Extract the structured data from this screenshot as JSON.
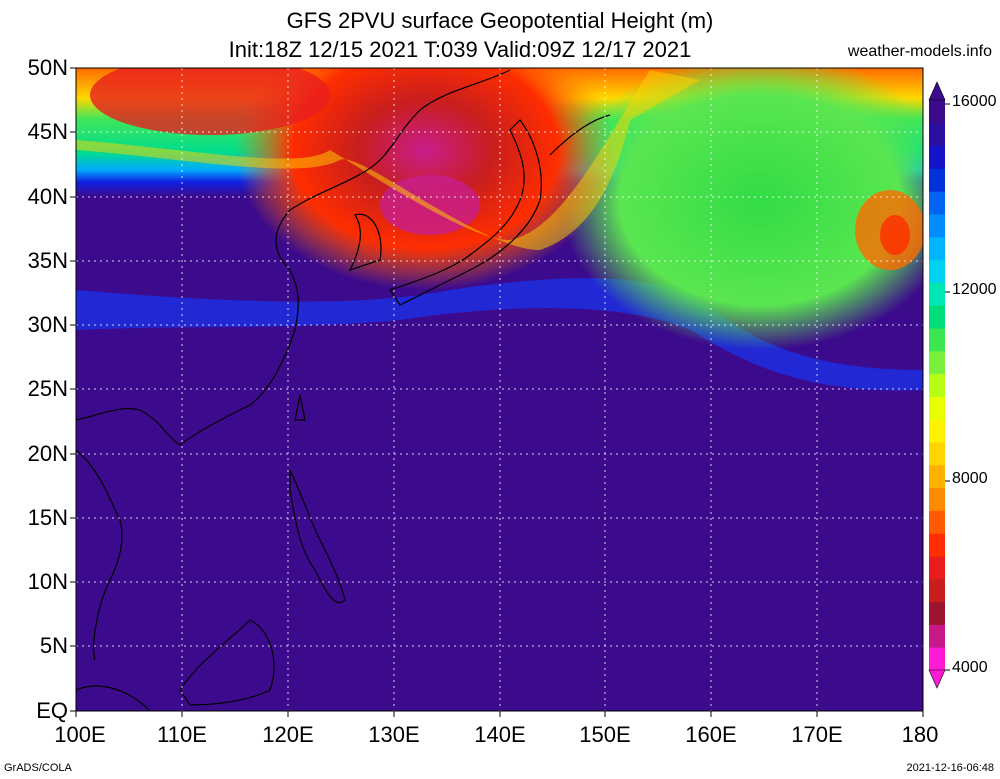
{
  "title": {
    "line1": "GFS 2PVU surface Geopotential Height (m)",
    "line2": "Init:18Z 12/15 2021 T:039 Valid:09Z 12/17 2021"
  },
  "source": "weather-models.info",
  "lat_labels": [
    "50N",
    "45N",
    "40N",
    "35N",
    "30N",
    "25N",
    "20N",
    "15N",
    "10N",
    "5N",
    "EQ"
  ],
  "lon_labels": [
    "100E",
    "110E",
    "120E",
    "130E",
    "140E",
    "150E",
    "160E",
    "170E",
    "180"
  ],
  "colorbar": {
    "labels": [
      "16000",
      "12000",
      "8000",
      "4000"
    ],
    "colors": [
      "#ff1ad5",
      "#c8198a",
      "#9b1530",
      "#c81e1e",
      "#e81e1e",
      "#ff2d00",
      "#ff5a00",
      "#ff8c00",
      "#ffb000",
      "#ffd400",
      "#fff200",
      "#e8ff00",
      "#b4ff14",
      "#78f03c",
      "#3ce650",
      "#00dc78",
      "#00e6b4",
      "#00d2f0",
      "#00b4ff",
      "#008cff",
      "#0064f0",
      "#0032dc",
      "#1414c8",
      "#2a0fa0",
      "#3c0a8c"
    ]
  },
  "footer": {
    "left": "GrADS/COLA",
    "right": "2021-12-16-06:48"
  }
}
